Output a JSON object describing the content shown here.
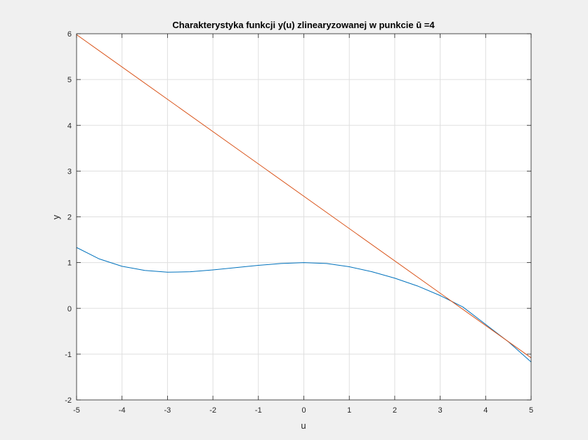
{
  "chart_data": {
    "type": "line",
    "title": "Charakterystyka funkcji y(u) zlinearyzowanej w punkcie ū =4",
    "xlabel": "u",
    "ylabel": "y",
    "xlim": [
      -5,
      5
    ],
    "ylim": [
      -2,
      6
    ],
    "xticks": [
      -5,
      -4,
      -3,
      -2,
      -1,
      0,
      1,
      2,
      3,
      4,
      5
    ],
    "yticks": [
      -2,
      -1,
      0,
      1,
      2,
      3,
      4,
      5,
      6
    ],
    "xtick_labels": [
      "-5",
      "-4",
      "-3",
      "-2",
      "-1",
      "0",
      "1",
      "2",
      "3",
      "4",
      "5"
    ],
    "ytick_labels": [
      "-2",
      "-1",
      "0",
      "1",
      "2",
      "3",
      "4",
      "5",
      "6"
    ],
    "grid": true,
    "series": [
      {
        "color": "#0072bd",
        "x": [
          -5,
          -4.5,
          -4,
          -3.5,
          -3,
          -2.5,
          -2,
          -1.5,
          -1,
          -0.5,
          0,
          0.5,
          1,
          1.5,
          2,
          2.5,
          3,
          3.5,
          4,
          4.5,
          5
        ],
        "y": [
          1.33,
          1.08,
          0.92,
          0.83,
          0.79,
          0.8,
          0.84,
          0.89,
          0.94,
          0.98,
          1.0,
          0.98,
          0.91,
          0.8,
          0.66,
          0.49,
          0.28,
          0.03,
          -0.35,
          -0.73,
          -1.17
        ]
      },
      {
        "color": "#d95319",
        "x": [
          -5,
          5
        ],
        "y": [
          5.98,
          -1.08
        ]
      }
    ]
  }
}
